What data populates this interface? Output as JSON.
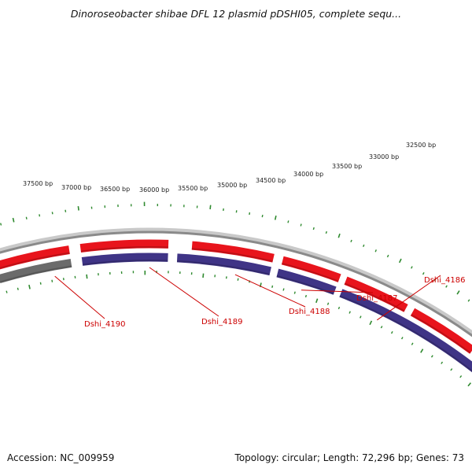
{
  "title": "Dinoroseobacter shibae DFL 12 plasmid pDSHI05, complete sequ...",
  "footer": {
    "accession": "Accession: NC_009959",
    "summary": "Topology: circular; Length: 72,296 bp; Genes: 73"
  },
  "colors": {
    "forward_gene": "#e8141c",
    "reverse_gene": "#3f3486",
    "gray_gene": "#6b6b6b",
    "cyan_gene": "#19b9b9",
    "tick": "#2f8a2f",
    "label": "#cc0000",
    "backbone": "#8a8a8a"
  },
  "scale_labels": [
    "37500 bp",
    "37000 bp",
    "36500 bp",
    "36000 bp",
    "35500 bp",
    "35000 bp",
    "34500 bp",
    "34000 bp",
    "33500 bp",
    "33000 bp",
    "32500 bp"
  ],
  "gene_labels": [
    "Dshi_4190",
    "Dshi_4189",
    "Dshi_4188",
    "Dshi_4187",
    "Dshi_4186"
  ]
}
